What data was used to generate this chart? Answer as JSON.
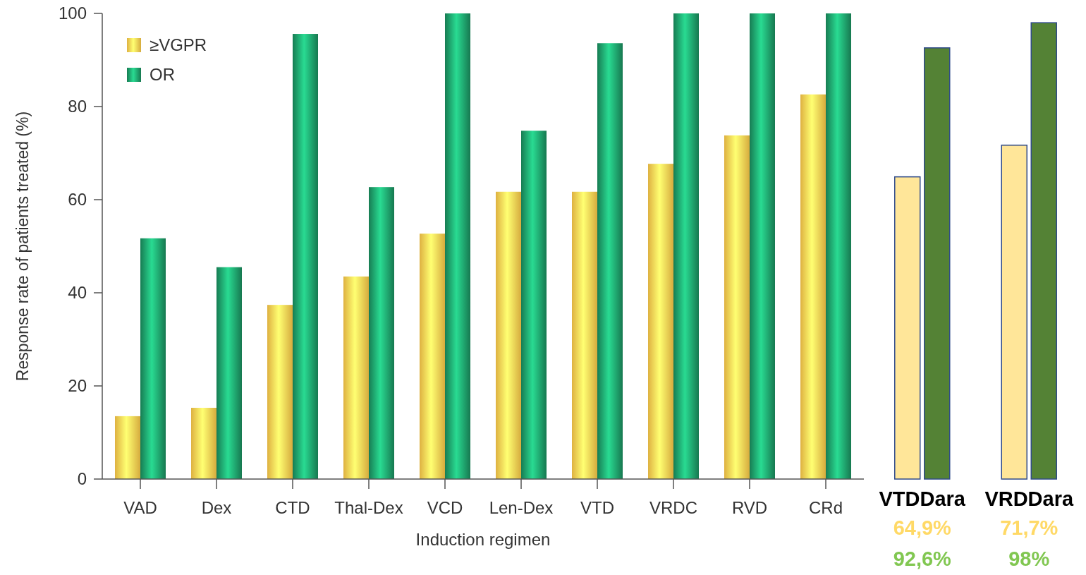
{
  "chart_data": [
    {
      "type": "bar",
      "xlabel": "Induction regimen",
      "ylabel": "Response rate of patients treated (%)",
      "categories": [
        "VAD",
        "Dex",
        "CTD",
        "Thal-Dex",
        "VCD",
        "Len-Dex",
        "VTD",
        "VRDC",
        "RVD",
        "CRd"
      ],
      "series": [
        {
          "name": "≥VGPR",
          "color": "#f7c548",
          "values": [
            13.5,
            15.3,
            37.4,
            43.5,
            52.7,
            61.7,
            61.7,
            67.7,
            73.8,
            82.6
          ]
        },
        {
          "name": "OR",
          "color": "#1a8a5c",
          "values": [
            51.7,
            45.5,
            95.6,
            62.7,
            100,
            74.8,
            93.6,
            100,
            100,
            100
          ]
        }
      ],
      "ylim": [
        0,
        100
      ],
      "yticks": [
        0,
        20,
        40,
        60,
        80,
        100
      ],
      "legend": "top left",
      "grid": false
    },
    {
      "type": "bar",
      "categories": [
        "VTDDara",
        "VRDDara"
      ],
      "series": [
        {
          "color": "#ffe699",
          "values": [
            64.9,
            71.7
          ],
          "value_labels": [
            "64,9%",
            "71,7%"
          ]
        },
        {
          "color": "#548235",
          "values": [
            92.6,
            98
          ],
          "value_labels": [
            "92,6%",
            "98%"
          ]
        }
      ],
      "ylim": [
        0,
        100
      ],
      "tick_labels": "x"
    }
  ]
}
